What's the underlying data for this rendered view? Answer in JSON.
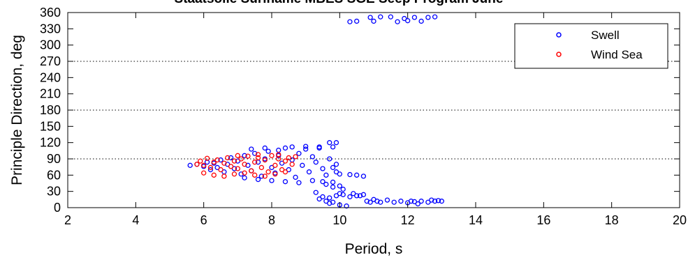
{
  "chart_data": {
    "type": "scatter",
    "title": "Staatsolie Suriname MBES SGE Seep Program June",
    "xlabel": "Period, s",
    "ylabel": "Principle Direction, deg",
    "xlim": [
      2,
      20
    ],
    "ylim": [
      0,
      360
    ],
    "xticks": [
      2,
      4,
      6,
      8,
      10,
      12,
      14,
      16,
      18,
      20
    ],
    "yticks": [
      0,
      30,
      60,
      90,
      120,
      150,
      180,
      210,
      240,
      270,
      300,
      330,
      360
    ],
    "reference_lines_y": [
      90,
      180,
      270
    ],
    "legend_position": "top-right",
    "series": [
      {
        "name": "Swell",
        "color": "#0000ff",
        "points": [
          [
            5.6,
            78
          ],
          [
            5.8,
            80
          ],
          [
            6.0,
            76
          ],
          [
            6.1,
            84
          ],
          [
            6.2,
            70
          ],
          [
            6.3,
            82
          ],
          [
            6.4,
            74
          ],
          [
            6.5,
            88
          ],
          [
            6.6,
            66
          ],
          [
            6.7,
            80
          ],
          [
            6.8,
            92
          ],
          [
            6.9,
            72
          ],
          [
            7.0,
            86
          ],
          [
            7.1,
            62
          ],
          [
            7.2,
            96
          ],
          [
            7.3,
            78
          ],
          [
            7.4,
            68
          ],
          [
            7.5,
            100
          ],
          [
            7.6,
            84
          ],
          [
            7.7,
            58
          ],
          [
            7.8,
            90
          ],
          [
            7.9,
            104
          ],
          [
            8.0,
            74
          ],
          [
            8.1,
            64
          ],
          [
            8.2,
            96
          ],
          [
            8.3,
            82
          ],
          [
            8.4,
            110
          ],
          [
            8.5,
            70
          ],
          [
            8.6,
            88
          ],
          [
            8.7,
            56
          ],
          [
            8.8,
            100
          ],
          [
            8.9,
            78
          ],
          [
            9.0,
            108
          ],
          [
            9.1,
            66
          ],
          [
            9.2,
            94
          ],
          [
            9.3,
            84
          ],
          [
            9.4,
            112
          ],
          [
            9.5,
            72
          ],
          [
            9.6,
            60
          ],
          [
            9.7,
            90
          ],
          [
            7.2,
            55
          ],
          [
            7.6,
            52
          ],
          [
            8.0,
            50
          ],
          [
            8.4,
            48
          ],
          [
            8.8,
            46
          ],
          [
            9.2,
            50
          ],
          [
            9.5,
            48
          ],
          [
            9.8,
            47
          ],
          [
            7.4,
            108
          ],
          [
            7.8,
            110
          ],
          [
            8.2,
            106
          ],
          [
            8.6,
            112
          ],
          [
            9.0,
            113
          ],
          [
            9.4,
            110
          ],
          [
            9.8,
            112
          ],
          [
            9.9,
            120
          ],
          [
            9.7,
            120
          ],
          [
            9.9,
            80
          ],
          [
            9.8,
            74
          ],
          [
            9.9,
            66
          ],
          [
            10.0,
            62
          ],
          [
            10.3,
            61
          ],
          [
            10.5,
            60
          ],
          [
            10.7,
            58
          ],
          [
            10.0,
            40
          ],
          [
            10.1,
            34
          ],
          [
            9.6,
            43
          ],
          [
            9.8,
            38
          ],
          [
            9.3,
            28
          ],
          [
            9.5,
            20
          ],
          [
            9.7,
            18
          ],
          [
            9.9,
            22
          ],
          [
            10.0,
            26
          ],
          [
            10.1,
            24
          ],
          [
            10.3,
            20
          ],
          [
            10.5,
            22
          ],
          [
            10.7,
            24
          ],
          [
            10.4,
            26
          ],
          [
            10.6,
            22
          ],
          [
            9.4,
            16
          ],
          [
            9.6,
            12
          ],
          [
            9.8,
            10
          ],
          [
            10.0,
            5
          ],
          [
            10.2,
            3
          ],
          [
            9.7,
            8
          ],
          [
            10.8,
            12
          ],
          [
            10.9,
            10
          ],
          [
            11.0,
            15
          ],
          [
            11.1,
            12
          ],
          [
            11.2,
            10
          ],
          [
            11.4,
            14
          ],
          [
            11.6,
            10
          ],
          [
            11.8,
            12
          ],
          [
            12.0,
            9
          ],
          [
            12.1,
            12
          ],
          [
            12.2,
            11
          ],
          [
            12.3,
            7
          ],
          [
            12.4,
            12
          ],
          [
            12.6,
            10
          ],
          [
            12.7,
            14
          ],
          [
            12.8,
            12
          ],
          [
            12.9,
            13
          ],
          [
            13.0,
            12
          ],
          [
            10.3,
            343
          ],
          [
            10.5,
            344
          ],
          [
            10.9,
            351
          ],
          [
            11.0,
            344
          ],
          [
            11.2,
            352
          ],
          [
            11.5,
            352
          ],
          [
            11.7,
            343
          ],
          [
            11.9,
            349
          ],
          [
            12.0,
            345
          ],
          [
            12.2,
            351
          ],
          [
            12.4,
            344
          ],
          [
            12.6,
            351
          ],
          [
            12.8,
            352
          ]
        ]
      },
      {
        "name": "Wind Sea",
        "color": "#ff0000",
        "points": [
          [
            5.8,
            80
          ],
          [
            5.9,
            86
          ],
          [
            6.0,
            78
          ],
          [
            6.1,
            91
          ],
          [
            6.2,
            74
          ],
          [
            6.3,
            84
          ],
          [
            6.4,
            88
          ],
          [
            6.5,
            70
          ],
          [
            6.6,
            82
          ],
          [
            6.7,
            92
          ],
          [
            6.8,
            76
          ],
          [
            6.9,
            86
          ],
          [
            7.0,
            72
          ],
          [
            7.1,
            90
          ],
          [
            7.2,
            80
          ],
          [
            7.3,
            95
          ],
          [
            7.4,
            68
          ],
          [
            7.5,
            84
          ],
          [
            7.6,
            92
          ],
          [
            7.7,
            74
          ],
          [
            7.8,
            88
          ],
          [
            7.9,
            66
          ],
          [
            8.0,
            96
          ],
          [
            8.1,
            78
          ],
          [
            8.2,
            90
          ],
          [
            8.3,
            70
          ],
          [
            8.4,
            86
          ],
          [
            8.5,
            92
          ],
          [
            8.6,
            80
          ],
          [
            8.7,
            94
          ],
          [
            6.0,
            64
          ],
          [
            6.3,
            60
          ],
          [
            6.6,
            58
          ],
          [
            6.9,
            62
          ],
          [
            7.2,
            64
          ],
          [
            7.5,
            60
          ],
          [
            7.8,
            58
          ],
          [
            8.1,
            62
          ],
          [
            8.4,
            66
          ],
          [
            7.0,
            96
          ],
          [
            7.6,
            98
          ],
          [
            8.2,
            98
          ]
        ]
      }
    ]
  }
}
